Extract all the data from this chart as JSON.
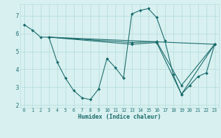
{
  "xlabel": "Humidex (Indice chaleur)",
  "bg_color": "#d8f0f0",
  "line_color": "#1a6b6b",
  "grid_color": "#b8dede",
  "xlim": [
    -0.5,
    23.5
  ],
  "ylim": [
    1.85,
    7.65
  ],
  "yticks": [
    2,
    3,
    4,
    5,
    6,
    7
  ],
  "xticks": [
    0,
    1,
    2,
    3,
    4,
    5,
    6,
    7,
    8,
    9,
    10,
    11,
    12,
    13,
    14,
    15,
    16,
    17,
    18,
    19,
    20,
    21,
    22,
    23
  ],
  "lines": [
    {
      "x": [
        0,
        1,
        2,
        3,
        4,
        5,
        6,
        7,
        8,
        9,
        10,
        11,
        12,
        13,
        14,
        15,
        16,
        17,
        18,
        19,
        20,
        21,
        22,
        23
      ],
      "y": [
        6.5,
        6.2,
        5.8,
        5.8,
        4.4,
        3.5,
        2.8,
        2.4,
        2.3,
        2.9,
        4.6,
        4.1,
        3.5,
        7.1,
        7.3,
        7.4,
        6.9,
        5.6,
        3.7,
        2.6,
        3.1,
        3.6,
        3.8,
        5.4
      ]
    },
    {
      "x": [
        3,
        23
      ],
      "y": [
        5.8,
        5.4
      ]
    },
    {
      "x": [
        3,
        13,
        16,
        19,
        23
      ],
      "y": [
        5.8,
        5.5,
        5.55,
        3.1,
        5.4
      ]
    },
    {
      "x": [
        3,
        13,
        16,
        19,
        23
      ],
      "y": [
        5.8,
        5.4,
        5.5,
        2.6,
        5.4
      ]
    }
  ]
}
